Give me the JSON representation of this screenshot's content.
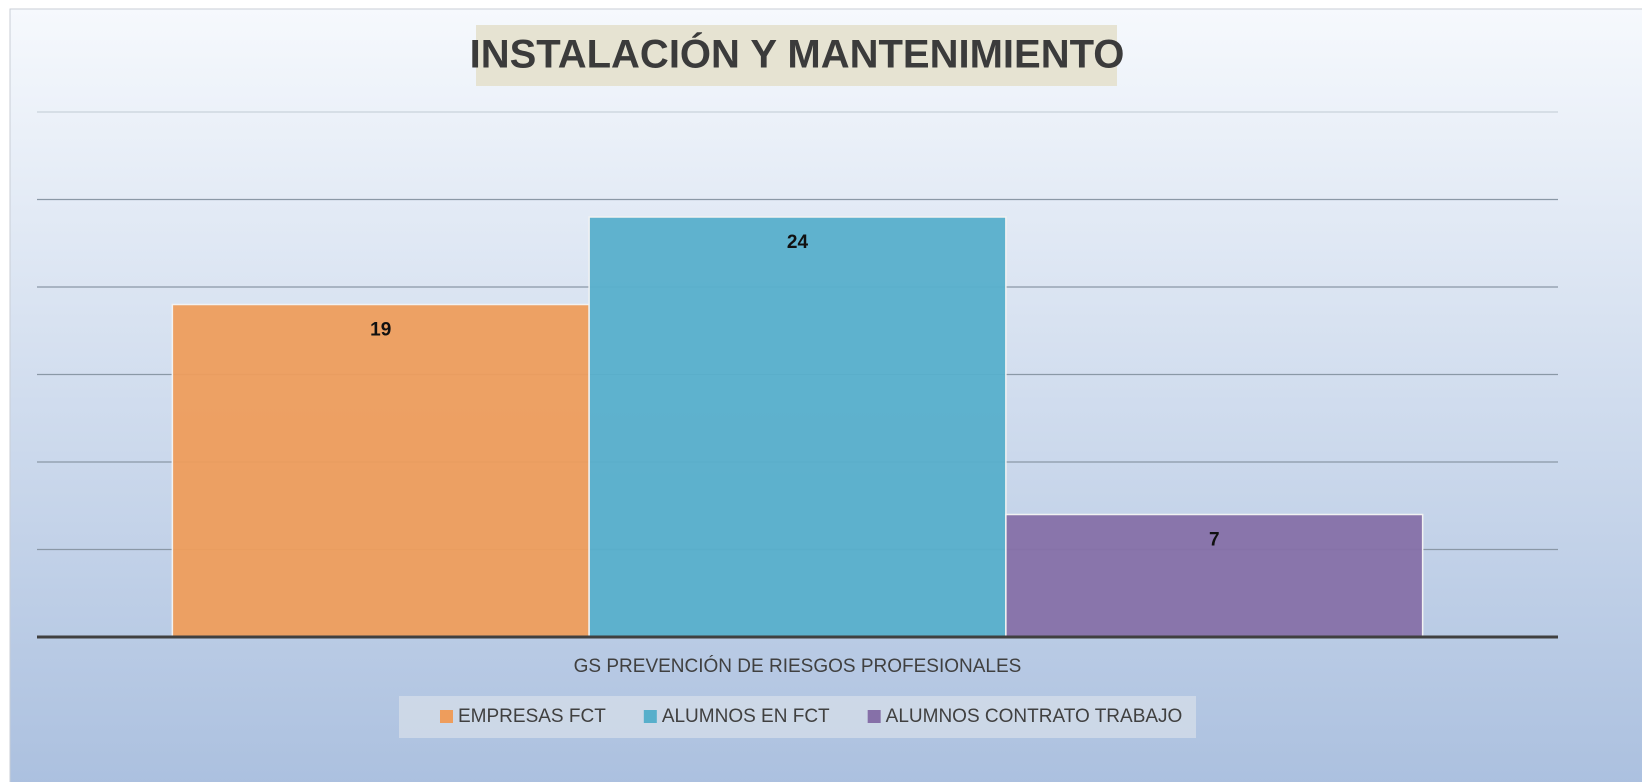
{
  "chart_data": {
    "type": "bar",
    "title": "INSTALACIÓN Y MANTENIMIENTO",
    "categories": [
      "GS PREVENCIÓN DE RIESGOS PROFESIONALES"
    ],
    "series": [
      {
        "name": "EMPRESAS FCT",
        "color": "#ee9d5c",
        "values": [
          19
        ]
      },
      {
        "name": "ALUMNOS EN FCT",
        "color": "#57afcb",
        "values": [
          24
        ]
      },
      {
        "name": "ALUMNOS CONTRATO TRABAJO",
        "color": "#8670a8",
        "values": [
          7
        ]
      }
    ],
    "ylim": [
      0,
      30
    ],
    "yticks": [
      0,
      5,
      10,
      15,
      20,
      25,
      30
    ],
    "grid": true,
    "legend": "bottom"
  }
}
